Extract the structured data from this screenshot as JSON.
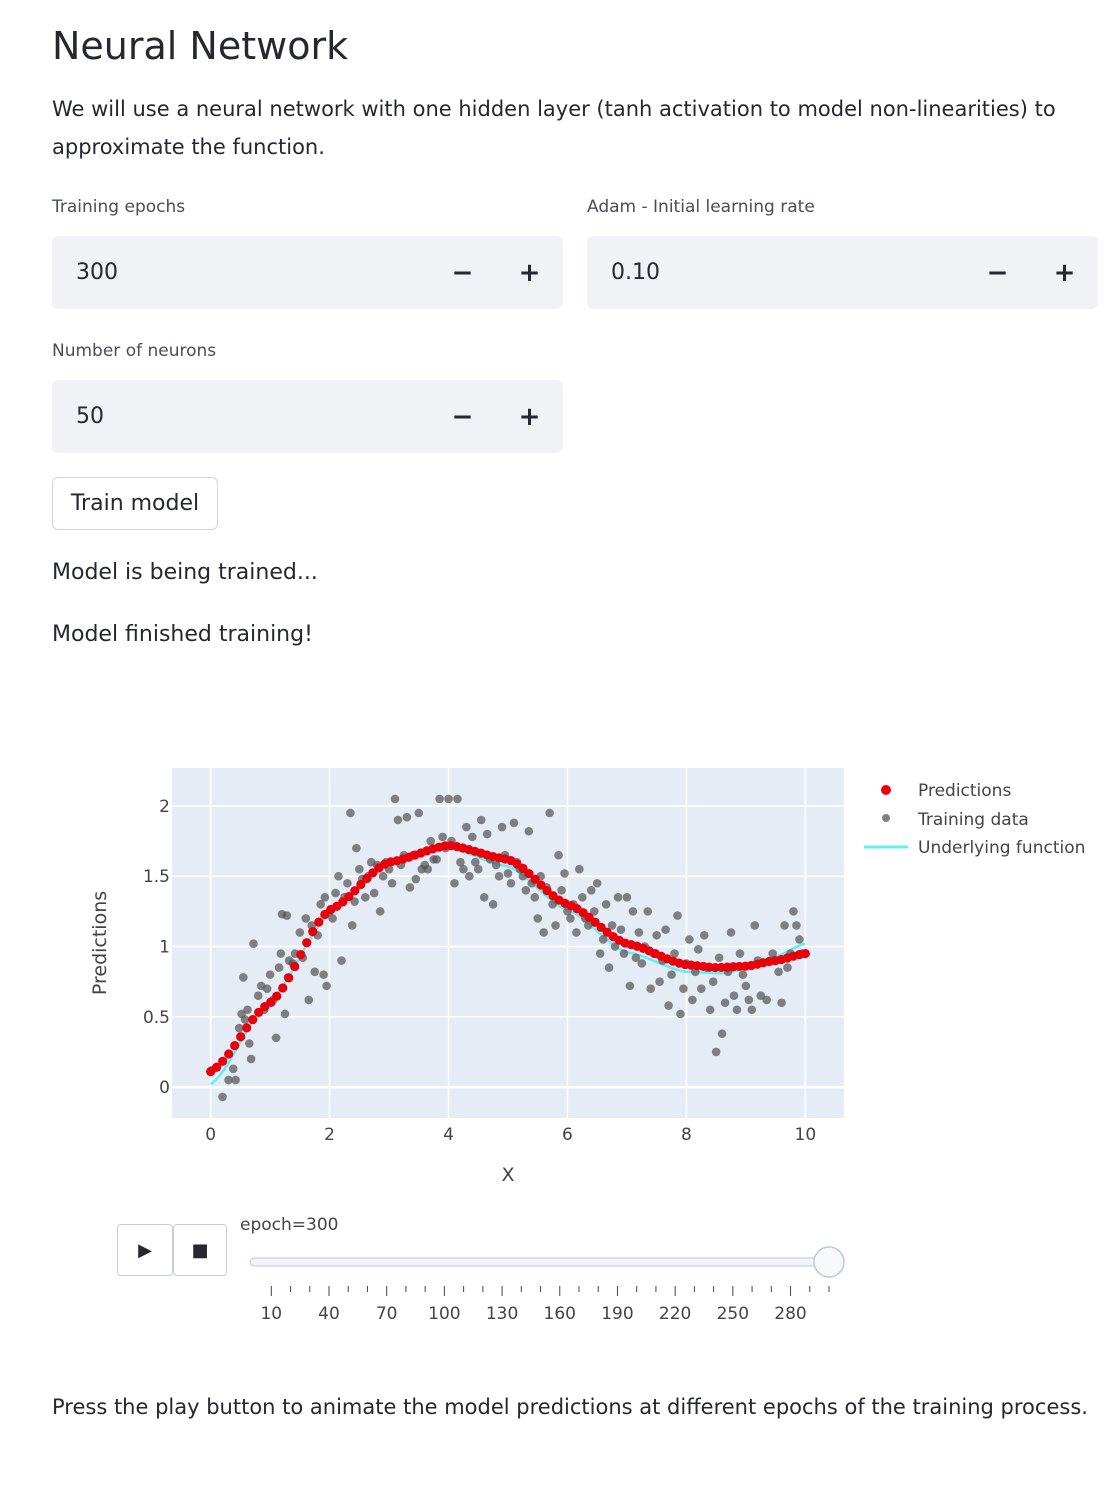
{
  "title": "Neural Network",
  "intro": "We will use a neural network with one hidden layer (tanh activation to model non-linearities) to approximate the function.",
  "inputs": {
    "epochs": {
      "label": "Training epochs",
      "value": "300"
    },
    "learning_rate": {
      "label": "Adam - Initial learning rate",
      "value": "0.10"
    },
    "neurons": {
      "label": "Number of neurons",
      "value": "50"
    },
    "minus": "−",
    "plus": "+"
  },
  "train_button": "Train model",
  "status": {
    "training": "Model is being trained...",
    "finished": "Model finished training!"
  },
  "animation": {
    "play": "▶",
    "stop": "■",
    "current_label": "epoch=300",
    "current_epoch": 300,
    "min_epoch": 1,
    "max_epoch": 300,
    "tick_labels": [
      "10",
      "40",
      "70",
      "100",
      "130",
      "160",
      "190",
      "220",
      "250",
      "280"
    ]
  },
  "footer": "Press the play button to animate the model predictions at different epochs of the training process.",
  "colors": {
    "predictions": "#e8000b",
    "training": "#555555",
    "underlying": "#5ff0f5",
    "plot_bg": "#e5ecf6"
  },
  "chart_data": {
    "type": "scatter",
    "xlabel": "X",
    "ylabel": "Predictions",
    "xlim": [
      -0.65,
      10.65
    ],
    "ylim": [
      -0.22,
      2.27
    ],
    "xticks": [
      0,
      2,
      4,
      6,
      8,
      10
    ],
    "yticks": [
      0,
      0.5,
      1,
      1.5,
      2
    ],
    "ytick_labels": [
      "0",
      "0.5",
      "1",
      "1.5",
      "2"
    ],
    "legend": [
      "Predictions",
      "Training data",
      "Underlying function"
    ],
    "legend_position": "right",
    "training_data": [
      [
        0.02,
        0.12
      ],
      [
        0.2,
        -0.07
      ],
      [
        0.3,
        0.05
      ],
      [
        0.38,
        0.13
      ],
      [
        0.42,
        0.05
      ],
      [
        0.48,
        0.42
      ],
      [
        0.52,
        0.52
      ],
      [
        0.55,
        0.78
      ],
      [
        0.58,
        0.48
      ],
      [
        0.62,
        0.55
      ],
      [
        0.65,
        0.31
      ],
      [
        0.68,
        0.2
      ],
      [
        0.72,
        1.02
      ],
      [
        0.8,
        0.65
      ],
      [
        0.85,
        0.72
      ],
      [
        0.9,
        0.55
      ],
      [
        0.95,
        0.7
      ],
      [
        1.0,
        0.8
      ],
      [
        1.02,
        0.6
      ],
      [
        1.05,
        0.62
      ],
      [
        1.1,
        0.35
      ],
      [
        1.15,
        0.85
      ],
      [
        1.18,
        0.95
      ],
      [
        1.2,
        1.23
      ],
      [
        1.25,
        0.52
      ],
      [
        1.28,
        1.22
      ],
      [
        1.3,
        0.78
      ],
      [
        1.32,
        0.9
      ],
      [
        1.38,
        0.88
      ],
      [
        1.42,
        0.95
      ],
      [
        1.5,
        1.1
      ],
      [
        1.55,
        0.92
      ],
      [
        1.6,
        1.2
      ],
      [
        1.65,
        0.62
      ],
      [
        1.7,
        1.15
      ],
      [
        1.75,
        0.82
      ],
      [
        1.8,
        1.08
      ],
      [
        1.85,
        1.3
      ],
      [
        1.9,
        0.8
      ],
      [
        1.92,
        1.35
      ],
      [
        1.95,
        0.72
      ],
      [
        2.0,
        1.25
      ],
      [
        2.05,
        1.2
      ],
      [
        2.1,
        1.38
      ],
      [
        2.15,
        1.5
      ],
      [
        2.2,
        0.9
      ],
      [
        2.25,
        1.35
      ],
      [
        2.3,
        1.45
      ],
      [
        2.35,
        1.95
      ],
      [
        2.38,
        1.15
      ],
      [
        2.42,
        1.32
      ],
      [
        2.45,
        1.7
      ],
      [
        2.5,
        1.55
      ],
      [
        2.55,
        1.48
      ],
      [
        2.6,
        1.35
      ],
      [
        2.65,
        1.5
      ],
      [
        2.7,
        1.6
      ],
      [
        2.75,
        1.38
      ],
      [
        2.8,
        1.58
      ],
      [
        2.85,
        1.25
      ],
      [
        2.9,
        1.5
      ],
      [
        2.95,
        1.6
      ],
      [
        3.0,
        1.55
      ],
      [
        3.05,
        1.45
      ],
      [
        3.1,
        2.05
      ],
      [
        3.15,
        1.9
      ],
      [
        3.2,
        1.58
      ],
      [
        3.25,
        1.65
      ],
      [
        3.3,
        1.92
      ],
      [
        3.35,
        1.42
      ],
      [
        3.4,
        1.65
      ],
      [
        3.45,
        1.48
      ],
      [
        3.5,
        1.95
      ],
      [
        3.55,
        1.55
      ],
      [
        3.6,
        1.58
      ],
      [
        3.65,
        1.55
      ],
      [
        3.7,
        1.75
      ],
      [
        3.75,
        1.62
      ],
      [
        3.8,
        1.62
      ],
      [
        3.85,
        2.05
      ],
      [
        3.9,
        1.78
      ],
      [
        3.95,
        1.7
      ],
      [
        4.0,
        2.05
      ],
      [
        4.05,
        1.75
      ],
      [
        4.1,
        1.45
      ],
      [
        4.15,
        2.05
      ],
      [
        4.2,
        1.6
      ],
      [
        4.25,
        1.55
      ],
      [
        4.3,
        1.85
      ],
      [
        4.35,
        1.5
      ],
      [
        4.4,
        1.78
      ],
      [
        4.45,
        1.6
      ],
      [
        4.5,
        1.55
      ],
      [
        4.55,
        1.9
      ],
      [
        4.6,
        1.35
      ],
      [
        4.65,
        1.8
      ],
      [
        4.7,
        1.62
      ],
      [
        4.75,
        1.3
      ],
      [
        4.8,
        1.58
      ],
      [
        4.85,
        1.5
      ],
      [
        4.9,
        1.85
      ],
      [
        4.95,
        1.65
      ],
      [
        5.0,
        1.52
      ],
      [
        5.05,
        1.45
      ],
      [
        5.1,
        1.88
      ],
      [
        5.15,
        1.6
      ],
      [
        5.2,
        1.55
      ],
      [
        5.25,
        1.5
      ],
      [
        5.3,
        1.4
      ],
      [
        5.35,
        1.82
      ],
      [
        5.4,
        1.45
      ],
      [
        5.45,
        1.35
      ],
      [
        5.5,
        1.2
      ],
      [
        5.55,
        1.5
      ],
      [
        5.6,
        1.1
      ],
      [
        5.65,
        1.42
      ],
      [
        5.7,
        1.95
      ],
      [
        5.75,
        1.3
      ],
      [
        5.8,
        1.15
      ],
      [
        5.85,
        1.65
      ],
      [
        5.9,
        1.4
      ],
      [
        5.95,
        1.52
      ],
      [
        6.0,
        1.25
      ],
      [
        6.05,
        1.2
      ],
      [
        6.1,
        1.3
      ],
      [
        6.15,
        1.1
      ],
      [
        6.2,
        1.55
      ],
      [
        6.25,
        1.35
      ],
      [
        6.3,
        1.2
      ],
      [
        6.35,
        1.15
      ],
      [
        6.4,
        1.4
      ],
      [
        6.45,
        1.25
      ],
      [
        6.5,
        1.45
      ],
      [
        6.55,
        0.95
      ],
      [
        6.6,
        1.05
      ],
      [
        6.65,
        1.3
      ],
      [
        6.7,
        0.85
      ],
      [
        6.75,
        1.15
      ],
      [
        6.8,
        1.0
      ],
      [
        6.85,
        1.35
      ],
      [
        6.9,
        1.12
      ],
      [
        6.95,
        0.95
      ],
      [
        7.0,
        1.35
      ],
      [
        7.05,
        0.72
      ],
      [
        7.1,
        1.25
      ],
      [
        7.15,
        0.92
      ],
      [
        7.2,
        1.1
      ],
      [
        7.25,
        0.88
      ],
      [
        7.3,
        1.0
      ],
      [
        7.35,
        1.25
      ],
      [
        7.4,
        0.7
      ],
      [
        7.45,
        0.95
      ],
      [
        7.5,
        1.08
      ],
      [
        7.55,
        0.75
      ],
      [
        7.6,
        0.9
      ],
      [
        7.65,
        1.12
      ],
      [
        7.7,
        0.58
      ],
      [
        7.75,
        0.8
      ],
      [
        7.8,
        0.95
      ],
      [
        7.85,
        1.22
      ],
      [
        7.9,
        0.52
      ],
      [
        7.95,
        0.7
      ],
      [
        8.0,
        0.88
      ],
      [
        8.05,
        1.05
      ],
      [
        8.1,
        0.62
      ],
      [
        8.15,
        0.82
      ],
      [
        8.2,
        0.98
      ],
      [
        8.25,
        0.7
      ],
      [
        8.3,
        1.08
      ],
      [
        8.35,
        0.85
      ],
      [
        8.4,
        0.55
      ],
      [
        8.45,
        0.75
      ],
      [
        8.5,
        0.25
      ],
      [
        8.55,
        0.92
      ],
      [
        8.6,
        0.38
      ],
      [
        8.65,
        0.6
      ],
      [
        8.7,
        0.82
      ],
      [
        8.75,
        1.1
      ],
      [
        8.8,
        0.65
      ],
      [
        8.85,
        0.55
      ],
      [
        8.9,
        0.95
      ],
      [
        8.95,
        0.8
      ],
      [
        9.0,
        0.72
      ],
      [
        9.05,
        0.62
      ],
      [
        9.1,
        0.55
      ],
      [
        9.15,
        1.15
      ],
      [
        9.2,
        0.9
      ],
      [
        9.25,
        0.65
      ],
      [
        9.35,
        0.62
      ],
      [
        9.45,
        0.95
      ],
      [
        9.55,
        0.82
      ],
      [
        9.6,
        0.6
      ],
      [
        9.65,
        1.15
      ],
      [
        9.7,
        0.85
      ],
      [
        9.75,
        0.95
      ],
      [
        9.8,
        1.25
      ],
      [
        9.85,
        1.15
      ],
      [
        9.9,
        1.05
      ],
      [
        9.95,
        0.95
      ]
    ],
    "predictions_x_range": [
      0,
      10
    ],
    "predictions_count": 100,
    "predictions_samples": [
      [
        0,
        0.11
      ],
      [
        1,
        0.6
      ],
      [
        2,
        1.26
      ],
      [
        3,
        1.6
      ],
      [
        4,
        1.72
      ],
      [
        5,
        1.62
      ],
      [
        6,
        1.3
      ],
      [
        7,
        1.02
      ],
      [
        8,
        0.87
      ],
      [
        8.5,
        0.85
      ],
      [
        9,
        0.86
      ],
      [
        9.5,
        0.9
      ],
      [
        10,
        0.95
      ]
    ],
    "underlying_samples": [
      [
        0,
        0.02
      ],
      [
        1,
        0.62
      ],
      [
        2,
        1.23
      ],
      [
        3,
        1.6
      ],
      [
        4,
        1.7
      ],
      [
        5,
        1.57
      ],
      [
        6,
        1.26
      ],
      [
        7,
        0.96
      ],
      [
        8,
        0.82
      ],
      [
        8.6,
        0.81
      ],
      [
        9,
        0.84
      ],
      [
        9.5,
        0.93
      ],
      [
        10,
        1.02
      ]
    ]
  }
}
